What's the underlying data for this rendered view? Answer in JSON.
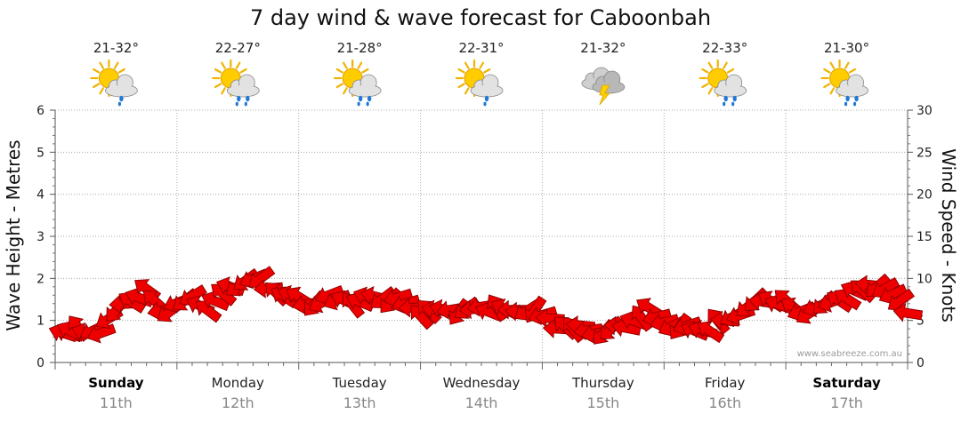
{
  "chart_data": {
    "type": "line",
    "title": "7 day wind & wave forecast for Caboonbah",
    "ylabel_left": "Wave Height - Metres",
    "ylabel_right": "Wind Speed - Knots",
    "ylim_left": [
      0,
      6
    ],
    "ylim_right": [
      0,
      30
    ],
    "yticks_left": [
      "0",
      "1",
      "2",
      "3",
      "4",
      "5",
      "6"
    ],
    "yticks_right": [
      "0",
      "5",
      "10",
      "15",
      "20",
      "25",
      "30"
    ],
    "days": [
      {
        "day": "Sunday",
        "date": "11th",
        "temp": "21-32°",
        "weather": "partly-cloudy-showers",
        "bold": true
      },
      {
        "day": "Monday",
        "date": "12th",
        "temp": "22-27°",
        "weather": "partly-cloudy-rain",
        "bold": false
      },
      {
        "day": "Tuesday",
        "date": "13th",
        "temp": "21-28°",
        "weather": "partly-cloudy-rain",
        "bold": false
      },
      {
        "day": "Wednesday",
        "date": "14th",
        "temp": "22-31°",
        "weather": "partly-cloudy-showers",
        "bold": false
      },
      {
        "day": "Thursday",
        "date": "15th",
        "temp": "21-32°",
        "weather": "thunderstorm",
        "bold": false
      },
      {
        "day": "Friday",
        "date": "16th",
        "temp": "22-33°",
        "weather": "partly-cloudy-rain",
        "bold": false
      },
      {
        "day": "Saturday",
        "date": "17th",
        "temp": "21-30°",
        "weather": "partly-cloudy-rain",
        "bold": true
      }
    ],
    "series": [
      {
        "name": "Wind Speed (knots)",
        "x_hours": [
          0,
          3,
          6,
          9,
          12,
          15,
          18,
          21,
          24,
          27,
          30,
          33,
          36,
          39,
          42,
          45,
          48,
          51,
          54,
          57,
          60,
          63,
          66,
          69,
          72,
          75,
          78,
          81,
          84,
          87,
          90,
          93,
          96,
          99,
          102,
          105,
          108,
          111,
          114,
          117,
          120,
          123,
          126,
          129,
          132,
          135,
          138,
          141,
          144,
          147,
          150,
          153,
          156,
          159,
          162,
          165,
          168
        ],
        "values": [
          3.5,
          4,
          3.5,
          4,
          6,
          7.5,
          8.5,
          6,
          7,
          7.5,
          6.5,
          8,
          9.5,
          10,
          9,
          8,
          7.5,
          7,
          7.5,
          7.5,
          7,
          8,
          7.5,
          7,
          6,
          6,
          6.5,
          6,
          6.5,
          6.5,
          6,
          6.5,
          5.5,
          4.5,
          4,
          4,
          3.5,
          4,
          5,
          6,
          5,
          4,
          4,
          4,
          5,
          6,
          7,
          7.5,
          7,
          6,
          6.5,
          7,
          8,
          8.5,
          9.5,
          8,
          6
        ],
        "color": "#ee0000"
      }
    ],
    "credit": "www.seabreeze.com.au"
  }
}
